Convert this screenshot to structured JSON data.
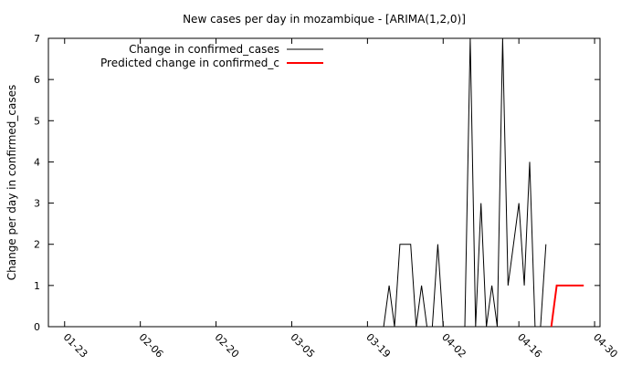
{
  "chart_data": {
    "type": "line",
    "title": "New cases per day in mozambique -  [ARIMA(1,2,0)]",
    "xlabel": "",
    "ylabel": "Change per day in confirmed_cases",
    "x_tick_labels": [
      "01-23",
      "02-06",
      "02-20",
      "03-05",
      "03-19",
      "04-02",
      "04-16",
      "04-30"
    ],
    "x_tick_dates": [
      "2020-01-23",
      "2020-02-06",
      "2020-02-20",
      "2020-03-05",
      "2020-03-19",
      "2020-04-02",
      "2020-04-16",
      "2020-04-30"
    ],
    "xlim": [
      "2020-01-20",
      "2020-05-01"
    ],
    "ylim": [
      0,
      7
    ],
    "y_ticks": [
      0,
      1,
      2,
      3,
      4,
      5,
      6,
      7
    ],
    "grid": false,
    "legend_position": "top-left",
    "series": [
      {
        "name": "Change in confirmed_cases",
        "color": "#000000",
        "points": [
          [
            "2020-03-22",
            0
          ],
          [
            "2020-03-23",
            1
          ],
          [
            "2020-03-24",
            0
          ],
          [
            "2020-03-25",
            2
          ],
          [
            "2020-03-26",
            2
          ],
          [
            "2020-03-27",
            2
          ],
          [
            "2020-03-28",
            0
          ],
          [
            "2020-03-29",
            1
          ],
          [
            "2020-03-30",
            0
          ],
          [
            "2020-03-31",
            0
          ],
          [
            "2020-04-01",
            2
          ],
          [
            "2020-04-02",
            0
          ],
          [
            "2020-04-03",
            0
          ],
          [
            "2020-04-04",
            0
          ],
          [
            "2020-04-05",
            0
          ],
          [
            "2020-04-06",
            0
          ],
          [
            "2020-04-07",
            7
          ],
          [
            "2020-04-08",
            0
          ],
          [
            "2020-04-09",
            3
          ],
          [
            "2020-04-10",
            0
          ],
          [
            "2020-04-11",
            1
          ],
          [
            "2020-04-12",
            0
          ],
          [
            "2020-04-13",
            7
          ],
          [
            "2020-04-14",
            1
          ],
          [
            "2020-04-15",
            2
          ],
          [
            "2020-04-16",
            3
          ],
          [
            "2020-04-17",
            1
          ],
          [
            "2020-04-18",
            4
          ],
          [
            "2020-04-19",
            0
          ],
          [
            "2020-04-20",
            0
          ],
          [
            "2020-04-21",
            2
          ]
        ]
      },
      {
        "name": "Predicted change in confirmed_c",
        "color": "#ff0000",
        "points": [
          [
            "2020-04-22",
            0
          ],
          [
            "2020-04-23",
            1
          ],
          [
            "2020-04-24",
            1
          ],
          [
            "2020-04-25",
            1
          ],
          [
            "2020-04-26",
            1
          ],
          [
            "2020-04-27",
            1
          ],
          [
            "2020-04-28",
            1
          ]
        ]
      }
    ]
  }
}
